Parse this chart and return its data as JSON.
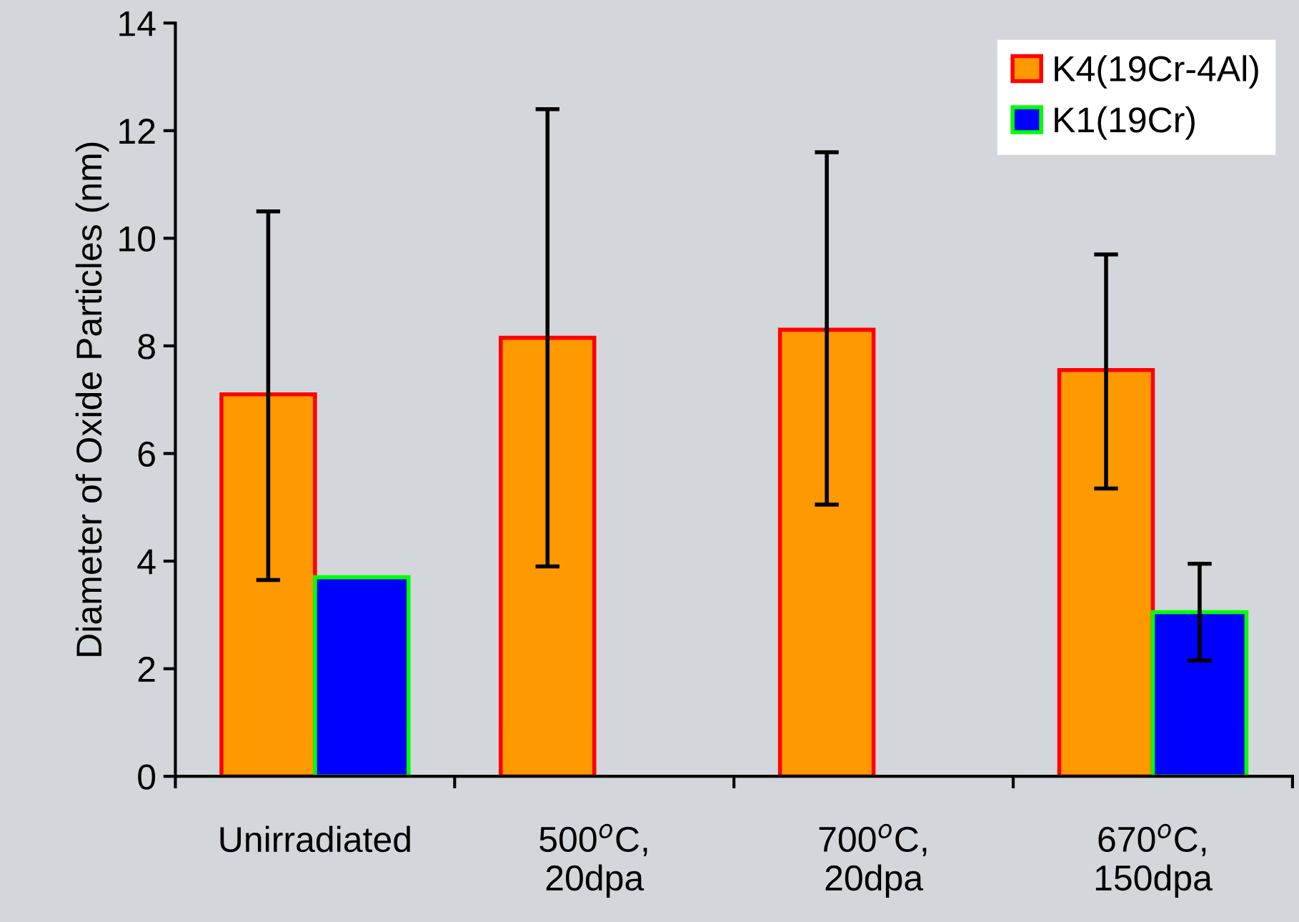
{
  "chart_data": {
    "type": "bar",
    "ylabel": "Diameter of Oxide Particles (nm)",
    "categories": [
      "Unirradiated",
      "500$^{o}$C,\n20dpa",
      "700$^{o}$C,\n20dpa",
      "670$^{o}$C,\n150dpa"
    ],
    "series": [
      {
        "name": "K4(19Cr-4Al)",
        "color": "#ff9900",
        "values": [
          7.1,
          8.15,
          8.3,
          7.55
        ],
        "errors": [
          [
            3.65,
            10.5
          ],
          [
            3.9,
            12.4
          ],
          [
            5.05,
            11.6
          ],
          [
            5.35,
            9.7
          ]
        ]
      },
      {
        "name": "K1(19Cr)",
        "color": "#0000ff",
        "values": [
          3.7,
          null,
          null,
          3.05
        ],
        "errors": [
          null,
          null,
          null,
          [
            2.15,
            3.95
          ]
        ]
      }
    ],
    "ylim": [
      0,
      14
    ],
    "yticks": [
      0,
      2,
      4,
      6,
      8,
      10,
      12,
      14
    ],
    "grid": false,
    "legend": "top right"
  }
}
